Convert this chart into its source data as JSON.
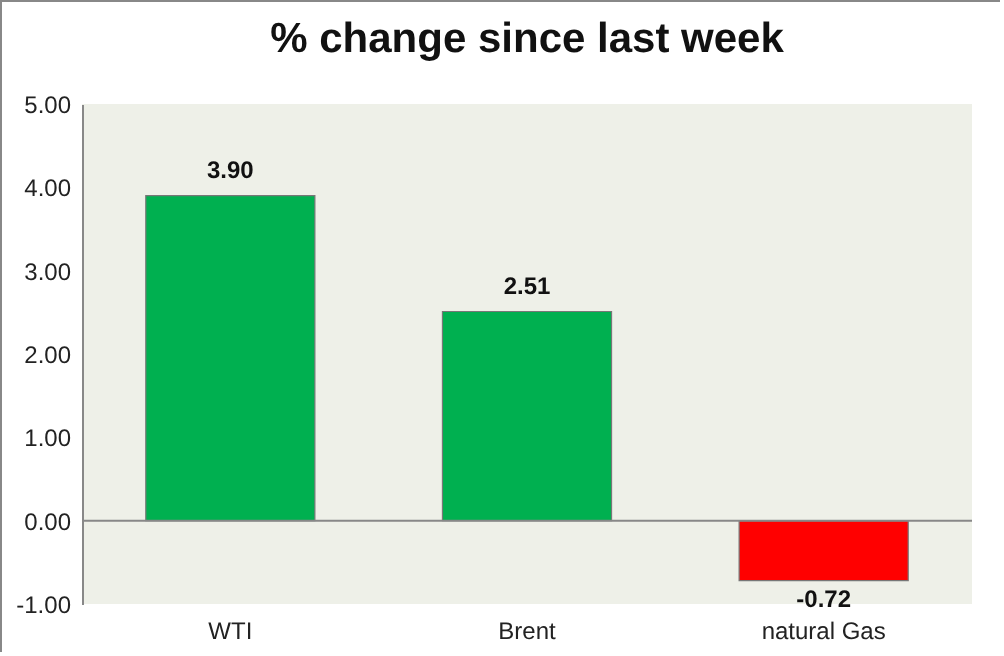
{
  "chart_data": {
    "type": "bar",
    "title": "% change since last week",
    "categories": [
      "WTI",
      "Brent",
      "natural Gas"
    ],
    "values": [
      3.9,
      2.51,
      -0.72
    ],
    "colors": [
      "#00b050",
      "#00b050",
      "#ff0000"
    ],
    "value_labels": [
      "3.90",
      "2.51",
      "-0.72"
    ],
    "ylim": [
      -1,
      5
    ],
    "yticks": [
      {
        "value": -1,
        "label": "-1.00"
      },
      {
        "value": 0,
        "label": "0.00"
      },
      {
        "value": 1,
        "label": "1.00"
      },
      {
        "value": 2,
        "label": "2.00"
      },
      {
        "value": 3,
        "label": "3.00"
      },
      {
        "value": 4,
        "label": "4.00"
      },
      {
        "value": 5,
        "label": "5.00"
      }
    ]
  }
}
